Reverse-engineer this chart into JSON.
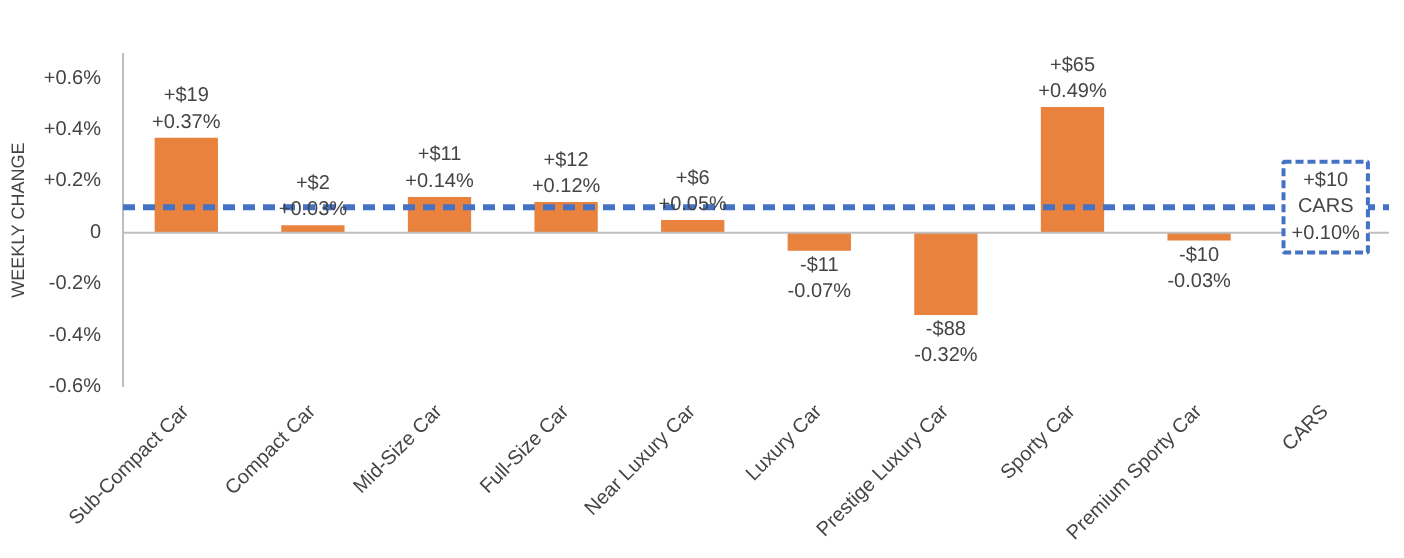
{
  "chart_data": {
    "type": "bar",
    "ylabel": "WEEKLY CHANGE",
    "categories": [
      "Sub-Compact Car",
      "Compact Car",
      "Mid-Size Car",
      "Full-Size Car",
      "Near Luxury Car",
      "Luxury Car",
      "Prestige Luxury Car",
      "Sporty Car",
      "Premium Sporty Car",
      "CARS"
    ],
    "values": [
      0.37,
      0.03,
      0.14,
      0.12,
      0.05,
      -0.07,
      -0.32,
      0.49,
      -0.03,
      null
    ],
    "value_labels": [
      "+$19\n+0.37%",
      "+$2\n+0.03%",
      "+$11\n+0.14%",
      "+$12\n+0.12%",
      "+$6\n+0.05%",
      "-$11\n-0.07%",
      "-$88\n-0.32%",
      "+$65\n+0.49%",
      "-$10\n-0.03%",
      null
    ],
    "color": "#e8823c",
    "ylim": [
      -0.6,
      0.7
    ],
    "yticks": [
      {
        "value": -0.6,
        "label": "-0.6%"
      },
      {
        "value": -0.4,
        "label": "-0.4%"
      },
      {
        "value": -0.2,
        "label": "-0.2%"
      },
      {
        "value": 0,
        "label": "0"
      },
      {
        "value": 0.2,
        "label": "+0.2%"
      },
      {
        "value": 0.4,
        "label": "+0.4%"
      },
      {
        "value": 0.6,
        "label": "+0.6%"
      }
    ],
    "ref_lines": [
      {
        "axis": "y",
        "value": 0.1,
        "label": "+$10\nCARS\n+0.10%",
        "color": "#4472c4",
        "line_style": "dashed"
      }
    ]
  }
}
